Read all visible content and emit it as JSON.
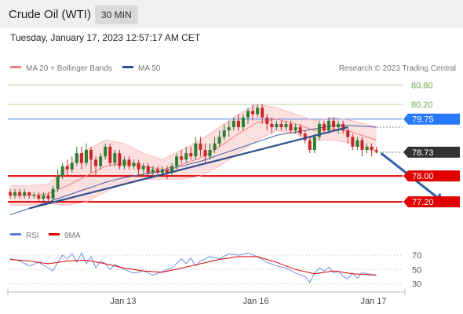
{
  "header": {
    "title": "Crude Oil (WTI)",
    "timeframe": "30 MIN",
    "timestamp": "Tuesday, January 17, 2023 12:57:17 AM CET"
  },
  "chart_data": [
    {
      "type": "candlestick",
      "legend": [
        {
          "name": "MA 20 + Bollinger Bands",
          "color": "#f08080"
        },
        {
          "name": "MA 50",
          "color": "#2f4f8f"
        }
      ],
      "credit": "Research © 2023 Trading Central",
      "ylim": [
        76.6,
        81.0
      ],
      "price_labels": [
        {
          "value": 80.8,
          "text": "80.80",
          "color": "#6aa84f",
          "style": "line"
        },
        {
          "value": 80.2,
          "text": "80.20",
          "color": "#6aa84f",
          "style": "line"
        },
        {
          "value": 79.75,
          "text": "79.75",
          "color": "#2979ff",
          "style": "box"
        },
        {
          "value": 78.73,
          "text": "78.73",
          "color": "#333333",
          "style": "box"
        },
        {
          "value": 78.0,
          "text": "78.00",
          "color": "#e00000",
          "style": "box"
        },
        {
          "value": 77.2,
          "text": "77.20",
          "color": "#e00000",
          "style": "box"
        }
      ],
      "x_labels": [
        "Jan 13",
        "Jan 16",
        "Jan 17"
      ],
      "candles": [
        [
          77.5,
          77.4,
          77.6,
          77.3
        ],
        [
          77.4,
          77.5,
          77.6,
          77.3
        ],
        [
          77.5,
          77.4,
          77.6,
          77.3
        ],
        [
          77.4,
          77.5,
          77.6,
          77.3
        ],
        [
          77.5,
          77.4,
          77.5,
          77.3
        ],
        [
          77.4,
          77.4,
          77.5,
          77.3
        ],
        [
          77.4,
          77.3,
          77.5,
          77.2
        ],
        [
          77.3,
          77.4,
          77.5,
          77.2
        ],
        [
          77.4,
          77.3,
          77.5,
          77.2
        ],
        [
          77.3,
          77.6,
          77.7,
          77.2
        ],
        [
          77.6,
          78.0,
          78.2,
          77.5
        ],
        [
          78.0,
          78.3,
          78.4,
          77.9
        ],
        [
          78.3,
          78.2,
          78.5,
          78.0
        ],
        [
          78.2,
          78.4,
          78.6,
          78.1
        ],
        [
          78.4,
          78.7,
          78.9,
          78.3
        ],
        [
          78.7,
          78.4,
          78.9,
          78.2
        ],
        [
          78.4,
          78.8,
          79.0,
          78.3
        ],
        [
          78.8,
          78.5,
          78.9,
          78.1
        ],
        [
          78.5,
          78.3,
          78.6,
          78.0
        ],
        [
          78.3,
          78.6,
          78.7,
          78.2
        ],
        [
          78.6,
          78.9,
          79.0,
          78.5
        ],
        [
          78.9,
          78.4,
          79.0,
          78.3
        ],
        [
          78.4,
          78.7,
          78.8,
          78.3
        ],
        [
          78.7,
          78.3,
          78.8,
          78.2
        ],
        [
          78.3,
          78.5,
          78.6,
          78.2
        ],
        [
          78.5,
          78.3,
          78.6,
          78.2
        ],
        [
          78.3,
          78.4,
          78.5,
          78.2
        ],
        [
          78.4,
          78.2,
          78.5,
          78.0
        ],
        [
          78.2,
          78.3,
          78.4,
          78.0
        ],
        [
          78.3,
          78.1,
          78.4,
          78.0
        ],
        [
          78.1,
          78.2,
          78.3,
          78.0
        ],
        [
          78.2,
          78.1,
          78.3,
          78.0
        ],
        [
          78.1,
          78.2,
          78.3,
          78.0
        ],
        [
          78.2,
          78.1,
          78.3,
          77.9
        ],
        [
          78.1,
          78.3,
          78.4,
          78.0
        ],
        [
          78.3,
          78.6,
          78.7,
          78.2
        ],
        [
          78.6,
          78.5,
          78.8,
          78.4
        ],
        [
          78.5,
          78.7,
          78.9,
          78.4
        ],
        [
          78.7,
          78.6,
          78.9,
          78.5
        ],
        [
          78.6,
          79.0,
          79.2,
          78.5
        ],
        [
          79.0,
          78.8,
          79.2,
          78.6
        ],
        [
          78.8,
          78.6,
          79.0,
          78.4
        ],
        [
          78.6,
          78.8,
          79.0,
          78.5
        ],
        [
          78.8,
          79.0,
          79.2,
          78.7
        ],
        [
          79.0,
          79.2,
          79.4,
          78.9
        ],
        [
          79.2,
          79.4,
          79.6,
          79.1
        ],
        [
          79.4,
          79.5,
          79.7,
          79.2
        ],
        [
          79.5,
          79.7,
          79.8,
          79.4
        ],
        [
          79.7,
          79.5,
          79.9,
          79.4
        ],
        [
          79.5,
          79.8,
          79.9,
          79.4
        ],
        [
          79.8,
          80.0,
          80.1,
          79.6
        ],
        [
          80.0,
          79.9,
          80.2,
          79.7
        ],
        [
          79.9,
          80.1,
          80.2,
          79.8
        ],
        [
          80.1,
          79.8,
          80.2,
          79.6
        ],
        [
          79.8,
          79.6,
          79.9,
          79.4
        ],
        [
          79.6,
          79.5,
          79.8,
          79.3
        ],
        [
          79.5,
          79.6,
          79.7,
          79.4
        ],
        [
          79.6,
          79.5,
          79.7,
          79.4
        ],
        [
          79.5,
          79.6,
          79.7,
          79.4
        ],
        [
          79.6,
          79.4,
          79.7,
          79.3
        ],
        [
          79.4,
          79.5,
          79.6,
          79.3
        ],
        [
          79.5,
          79.3,
          79.6,
          79.2
        ],
        [
          79.3,
          79.1,
          79.4,
          79.0
        ],
        [
          79.1,
          78.8,
          79.2,
          78.7
        ],
        [
          78.8,
          79.2,
          79.3,
          78.7
        ],
        [
          79.2,
          79.6,
          79.7,
          79.1
        ],
        [
          79.6,
          79.4,
          79.7,
          79.3
        ],
        [
          79.4,
          79.7,
          79.8,
          79.3
        ],
        [
          79.7,
          79.5,
          79.8,
          79.4
        ],
        [
          79.5,
          79.6,
          79.7,
          79.3
        ],
        [
          79.6,
          79.4,
          79.7,
          79.3
        ],
        [
          79.4,
          79.2,
          79.5,
          79.0
        ],
        [
          79.2,
          78.9,
          79.3,
          78.8
        ],
        [
          78.9,
          79.1,
          79.2,
          78.8
        ],
        [
          79.1,
          78.8,
          79.2,
          78.6
        ],
        [
          78.8,
          78.9,
          79.0,
          78.7
        ],
        [
          78.9,
          78.8,
          79.0,
          78.6
        ],
        [
          78.8,
          78.75,
          78.9,
          78.7
        ]
      ],
      "ma50": [
        [
          0,
          76.8
        ],
        [
          4,
          77.0
        ],
        [
          8,
          77.2
        ],
        [
          12,
          77.4
        ],
        [
          16,
          77.6
        ],
        [
          20,
          77.8
        ],
        [
          24,
          77.95
        ],
        [
          28,
          78.05
        ],
        [
          32,
          78.15
        ],
        [
          36,
          78.3
        ],
        [
          40,
          78.45
        ],
        [
          44,
          78.65
        ],
        [
          48,
          78.85
        ],
        [
          52,
          79.05
        ],
        [
          56,
          79.25
        ],
        [
          60,
          79.35
        ],
        [
          64,
          79.45
        ],
        [
          68,
          79.55
        ],
        [
          72,
          79.55
        ],
        [
          77,
          79.5
        ]
      ],
      "ma20": [
        [
          0,
          77.4
        ],
        [
          4,
          77.4
        ],
        [
          8,
          77.45
        ],
        [
          12,
          77.7
        ],
        [
          16,
          78.0
        ],
        [
          20,
          78.3
        ],
        [
          24,
          78.4
        ],
        [
          28,
          78.3
        ],
        [
          32,
          78.2
        ],
        [
          36,
          78.35
        ],
        [
          40,
          78.55
        ],
        [
          44,
          78.9
        ],
        [
          48,
          79.3
        ],
        [
          52,
          79.65
        ],
        [
          56,
          79.75
        ],
        [
          60,
          79.6
        ],
        [
          64,
          79.4
        ],
        [
          68,
          79.45
        ],
        [
          72,
          79.35
        ],
        [
          77,
          79.1
        ]
      ],
      "bb_upper": [
        [
          0,
          77.7
        ],
        [
          4,
          77.7
        ],
        [
          8,
          77.75
        ],
        [
          12,
          78.3
        ],
        [
          16,
          78.8
        ],
        [
          20,
          79.1
        ],
        [
          24,
          79.0
        ],
        [
          28,
          78.7
        ],
        [
          32,
          78.5
        ],
        [
          36,
          78.8
        ],
        [
          40,
          79.1
        ],
        [
          44,
          79.5
        ],
        [
          48,
          79.9
        ],
        [
          52,
          80.2
        ],
        [
          56,
          80.1
        ],
        [
          60,
          79.9
        ],
        [
          64,
          79.7
        ],
        [
          68,
          79.8
        ],
        [
          72,
          79.7
        ],
        [
          77,
          79.5
        ]
      ],
      "bb_lower": [
        [
          0,
          77.1
        ],
        [
          4,
          77.1
        ],
        [
          8,
          77.15
        ],
        [
          12,
          77.1
        ],
        [
          16,
          77.2
        ],
        [
          20,
          77.5
        ],
        [
          24,
          77.8
        ],
        [
          28,
          77.9
        ],
        [
          32,
          77.9
        ],
        [
          36,
          77.9
        ],
        [
          40,
          78.0
        ],
        [
          44,
          78.3
        ],
        [
          48,
          78.7
        ],
        [
          52,
          79.1
        ],
        [
          56,
          79.4
        ],
        [
          60,
          79.3
        ],
        [
          64,
          79.1
        ],
        [
          68,
          79.1
        ],
        [
          72,
          79.0
        ],
        [
          77,
          78.7
        ]
      ],
      "trendlines": [
        {
          "from": [
            4,
            77.0
          ],
          "to": [
            71,
            79.5
          ],
          "color": "#2f4f8f"
        }
      ],
      "forecast_arrow": {
        "from": [
          78,
          78.7
        ],
        "to": [
          91,
          77.2
        ],
        "color": "#2a5fa8"
      }
    },
    {
      "type": "line",
      "legend": [
        {
          "name": "RSI",
          "color": "#5b7fd6"
        },
        {
          "name": "9MA",
          "color": "#e00000"
        }
      ],
      "ylim": [
        25,
        80
      ],
      "y_ticks": [
        "70",
        "50",
        "30"
      ],
      "rsi": [
        [
          0,
          65
        ],
        [
          2,
          62
        ],
        [
          4,
          55
        ],
        [
          6,
          60
        ],
        [
          8,
          52
        ],
        [
          9,
          48
        ],
        [
          10,
          60
        ],
        [
          11,
          70
        ],
        [
          12,
          65
        ],
        [
          13,
          72
        ],
        [
          14,
          60
        ],
        [
          15,
          73
        ],
        [
          16,
          58
        ],
        [
          17,
          68
        ],
        [
          18,
          52
        ],
        [
          19,
          62
        ],
        [
          20,
          58
        ],
        [
          21,
          50
        ],
        [
          22,
          57
        ],
        [
          24,
          50
        ],
        [
          26,
          45
        ],
        [
          28,
          48
        ],
        [
          30,
          42
        ],
        [
          32,
          47
        ],
        [
          34,
          52
        ],
        [
          36,
          65
        ],
        [
          37,
          58
        ],
        [
          38,
          66
        ],
        [
          39,
          55
        ],
        [
          40,
          62
        ],
        [
          42,
          68
        ],
        [
          44,
          65
        ],
        [
          46,
          72
        ],
        [
          48,
          70
        ],
        [
          50,
          73
        ],
        [
          52,
          68
        ],
        [
          54,
          60
        ],
        [
          56,
          55
        ],
        [
          58,
          52
        ],
        [
          60,
          45
        ],
        [
          62,
          40
        ],
        [
          63,
          32
        ],
        [
          64,
          45
        ],
        [
          65,
          52
        ],
        [
          66,
          48
        ],
        [
          67,
          53
        ],
        [
          68,
          45
        ],
        [
          69,
          48
        ],
        [
          70,
          40
        ],
        [
          71,
          37
        ],
        [
          72,
          45
        ],
        [
          73,
          38
        ],
        [
          74,
          46
        ],
        [
          75,
          44
        ],
        [
          77,
          42
        ]
      ],
      "ma9": [
        [
          0,
          64
        ],
        [
          4,
          62
        ],
        [
          8,
          58
        ],
        [
          12,
          62
        ],
        [
          16,
          63
        ],
        [
          20,
          58
        ],
        [
          24,
          52
        ],
        [
          28,
          48
        ],
        [
          32,
          46
        ],
        [
          36,
          52
        ],
        [
          40,
          58
        ],
        [
          44,
          64
        ],
        [
          48,
          68
        ],
        [
          52,
          68
        ],
        [
          56,
          60
        ],
        [
          60,
          50
        ],
        [
          64,
          44
        ],
        [
          68,
          48
        ],
        [
          72,
          44
        ],
        [
          77,
          42
        ]
      ]
    }
  ]
}
